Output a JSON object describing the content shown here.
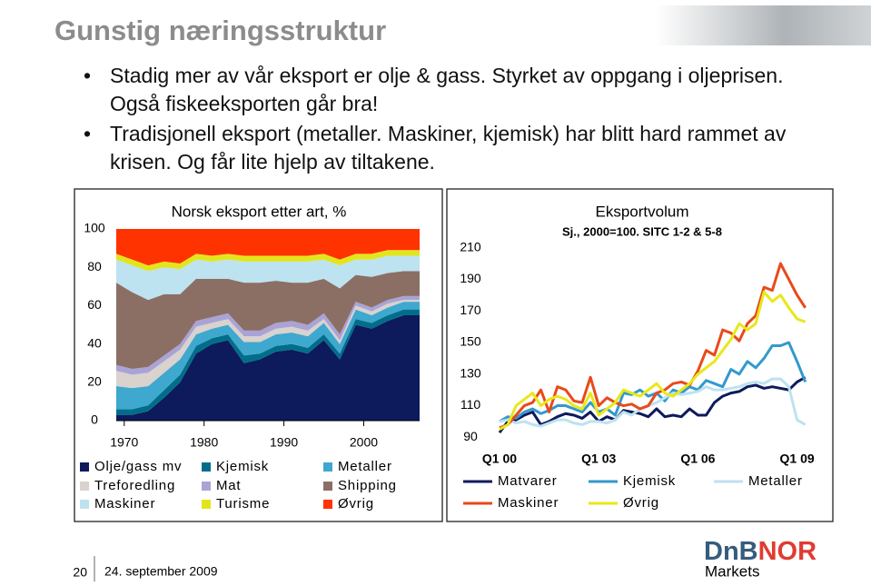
{
  "title": "Gunstig næringsstruktur",
  "bullets": [
    "Stadig mer av vår eksport er olje & gass. Styrket av oppgang i oljeprisen.  Også fiskeeksporten går bra!",
    "Tradisjonell eksport (metaller. Maskiner, kjemisk) har blitt hard rammet av krisen. Og får lite hjelp av tiltakene."
  ],
  "footer": {
    "page": "20",
    "date": "24. september 2009"
  },
  "logo": {
    "brand_a": "DnB",
    "brand_b": "NOR",
    "sub": "Markets"
  },
  "chart_data": [
    {
      "type": "area",
      "stacked": true,
      "title": "Norsk eksport etter art, %",
      "x": [
        1969,
        1971,
        1973,
        1975,
        1977,
        1979,
        1981,
        1983,
        1985,
        1987,
        1989,
        1991,
        1993,
        1995,
        1997,
        1999,
        2001,
        2003,
        2005,
        2007
      ],
      "xlim": [
        1969,
        2007
      ],
      "xticks": [
        1970,
        1980,
        1990,
        2000
      ],
      "ylim": [
        0,
        100
      ],
      "yticks": [
        0,
        20,
        40,
        60,
        80,
        100
      ],
      "grid": false,
      "series": [
        {
          "name": "Olje/gass mv",
          "color": "#0d1a5c",
          "values": [
            3,
            3,
            5,
            12,
            20,
            35,
            40,
            42,
            30,
            32,
            36,
            37,
            35,
            42,
            32,
            50,
            48,
            52,
            55,
            55
          ]
        },
        {
          "name": "Kjemisk",
          "color": "#006e8a",
          "values": [
            3,
            3,
            3,
            4,
            4,
            4,
            3,
            3,
            4,
            3,
            3,
            3,
            3,
            3,
            3,
            3,
            3,
            3,
            3,
            3
          ]
        },
        {
          "name": "Metaller",
          "color": "#3fa8cf",
          "values": [
            12,
            11,
            10,
            9,
            8,
            6,
            5,
            5,
            7,
            6,
            6,
            6,
            6,
            6,
            5,
            5,
            4,
            4,
            4,
            4
          ]
        },
        {
          "name": "Treforedling",
          "color": "#d9d2cd",
          "values": [
            8,
            7,
            7,
            6,
            5,
            4,
            3,
            3,
            3,
            3,
            3,
            3,
            3,
            2,
            2,
            2,
            2,
            2,
            1,
            1
          ]
        },
        {
          "name": "Mat",
          "color": "#aaa3d6",
          "values": [
            3,
            3,
            3,
            3,
            3,
            3,
            3,
            3,
            3,
            3,
            3,
            3,
            3,
            3,
            3,
            2,
            2,
            2,
            2,
            2
          ]
        },
        {
          "name": "Shipping",
          "color": "#8b6f65",
          "values": [
            43,
            40,
            35,
            32,
            26,
            22,
            20,
            18,
            25,
            25,
            22,
            20,
            22,
            18,
            24,
            14,
            16,
            14,
            13,
            13
          ]
        },
        {
          "name": "Maskiner",
          "color": "#bde2f0",
          "values": [
            12,
            14,
            15,
            14,
            13,
            10,
            9,
            10,
            11,
            11,
            10,
            11,
            11,
            10,
            12,
            8,
            9,
            9,
            8,
            8
          ]
        },
        {
          "name": "Turisme",
          "color": "#e3e51c",
          "values": [
            3,
            3,
            3,
            3,
            3,
            3,
            3,
            3,
            3,
            3,
            3,
            3,
            3,
            3,
            3,
            3,
            3,
            3,
            3,
            3
          ]
        },
        {
          "name": "Øvrig",
          "color": "#ff3300",
          "values": [
            13,
            16,
            19,
            17,
            18,
            13,
            14,
            13,
            14,
            14,
            14,
            14,
            14,
            13,
            16,
            13,
            13,
            11,
            11,
            11
          ]
        }
      ]
    },
    {
      "type": "line",
      "title": "Eksportvolum",
      "subtitle": "Sj., 2000=100. SITC 1-2 & 5-8",
      "categories": [
        "Q1 00",
        null,
        null,
        null,
        null,
        null,
        null,
        null,
        null,
        null,
        null,
        null,
        "Q1 03",
        null,
        null,
        null,
        null,
        null,
        null,
        null,
        null,
        null,
        null,
        null,
        "Q1 06",
        null,
        null,
        null,
        null,
        null,
        null,
        null,
        null,
        null,
        null,
        null,
        "Q1 09",
        null
      ],
      "ylim": [
        85,
        215
      ],
      "yticks": [
        90,
        110,
        130,
        150,
        170,
        190,
        210
      ],
      "grid": false,
      "series": [
        {
          "name": "Matvarer",
          "color": "#0d1a5c",
          "values": [
            93,
            100,
            101,
            104,
            106,
            98,
            100,
            103,
            105,
            104,
            102,
            106,
            100,
            103,
            101,
            107,
            106,
            105,
            103,
            108,
            103,
            104,
            103,
            108,
            104,
            104,
            112,
            116,
            118,
            119,
            122,
            123,
            121,
            122,
            121,
            120,
            125,
            128
          ]
        },
        {
          "name": "Kjemisk",
          "color": "#3399cc",
          "values": [
            100,
            103,
            102,
            106,
            108,
            105,
            107,
            110,
            110,
            108,
            106,
            112,
            106,
            108,
            104,
            118,
            117,
            120,
            116,
            118,
            113,
            120,
            118,
            122,
            120,
            126,
            124,
            122,
            133,
            130,
            138,
            134,
            140,
            148,
            148,
            150,
            138,
            125
          ]
        },
        {
          "name": "Metaller",
          "color": "#bde2f0",
          "values": [
            100,
            101,
            99,
            100,
            98,
            97,
            99,
            101,
            101,
            99,
            98,
            100,
            100,
            99,
            101,
            106,
            104,
            108,
            110,
            112,
            115,
            118,
            117,
            118,
            119,
            122,
            120,
            120,
            121,
            122,
            124,
            125,
            124,
            127,
            127,
            122,
            101,
            98
          ]
        },
        {
          "name": "Maskiner",
          "color": "#e84a1a",
          "values": [
            96,
            98,
            104,
            110,
            112,
            120,
            106,
            122,
            120,
            113,
            112,
            128,
            110,
            115,
            112,
            110,
            111,
            108,
            110,
            118,
            120,
            124,
            125,
            123,
            132,
            145,
            142,
            158,
            156,
            151,
            162,
            167,
            185,
            183,
            200,
            190,
            180,
            172
          ]
        },
        {
          "name": "Øvrig",
          "color": "#e8e81a",
          "values": [
            95,
            98,
            110,
            114,
            118,
            110,
            114,
            116,
            114,
            110,
            108,
            118,
            104,
            108,
            112,
            120,
            118,
            116,
            120,
            124,
            118,
            116,
            120,
            124,
            130,
            134,
            138,
            145,
            152,
            162,
            158,
            162,
            182,
            176,
            180,
            172,
            165,
            163
          ]
        }
      ]
    }
  ]
}
